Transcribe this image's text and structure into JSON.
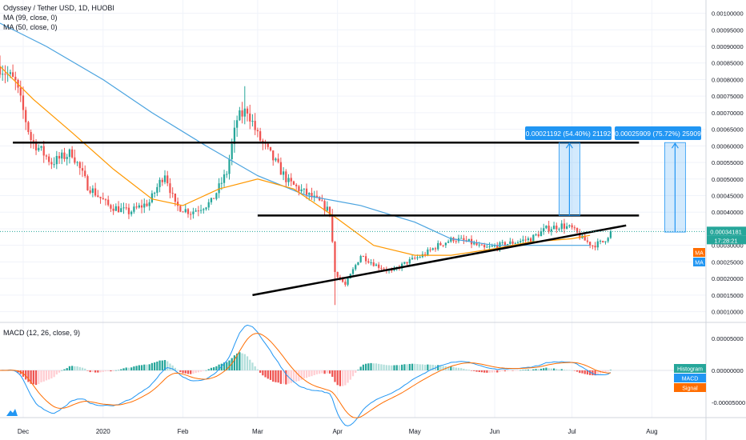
{
  "header": {
    "symbol_line": "Odyssey / Tether USD, 1D, HUOBI",
    "ma99_line": "MA (99, close, 0)",
    "ma50_line": "MA (50, close, 0)"
  },
  "macd_panel": {
    "title": "MACD (12, 26, close, 9)",
    "badges": [
      {
        "label": "Histogram",
        "color": "#26a69a"
      },
      {
        "label": "MACD",
        "color": "#2196f3"
      },
      {
        "label": "Signal",
        "color": "#ff6d00"
      }
    ],
    "axis_ticks": [
      "0.00005000",
      "0.00000000",
      "-0.00005000"
    ]
  },
  "price_axis": {
    "ticks": [
      "0.00100000",
      "0.00095000",
      "0.00090000",
      "0.00085000",
      "0.00080000",
      "0.00075000",
      "0.00070000",
      "0.00065000",
      "0.00060000",
      "0.00055000",
      "0.00050000",
      "0.00045000",
      "0.00040000",
      "0.00035000",
      "0.00030000",
      "0.00025000",
      "0.00020000",
      "0.00015000",
      "0.00010000"
    ],
    "last_price_label": "0.00034181",
    "countdown_label": "17:28:21",
    "ma_badges": [
      {
        "label": "MA",
        "color": "#ff6d00"
      },
      {
        "label": "MA",
        "color": "#2196f3"
      }
    ]
  },
  "time_axis": {
    "labels": [
      "Dec",
      "2020",
      "Feb",
      "Mar",
      "Apr",
      "May",
      "Jun",
      "Jul",
      "Aug"
    ]
  },
  "annotations": {
    "measure_1": "0.00021192 (54.40%) 21192",
    "measure_2": "0.00025909 (75.72%) 25909"
  },
  "colors": {
    "up": "#26a69a",
    "down": "#ef5350",
    "ma50": "#ff9800",
    "ma99": "#4aa3df",
    "macd": "#2196f3",
    "signal": "#ff6d00",
    "measure": "#2196f3"
  },
  "chart_data": {
    "type": "candlestick",
    "x_range": [
      "2019-11-22",
      "2020-08-22"
    ],
    "y_range": [
      7e-05,
      0.00104
    ],
    "last_price": 0.00034181,
    "resistance_upper": 0.00061,
    "resistance_lower": 0.00039,
    "support_line": [
      [
        "2020-02-28",
        0.00015
      ],
      [
        "2020-07-22",
        0.00036
      ]
    ],
    "ma50_points": [
      [
        "2019-11-22",
        0.00084
      ],
      [
        "2019-12-05",
        0.00074
      ],
      [
        "2019-12-20",
        0.00064
      ],
      [
        "2020-01-05",
        0.00053
      ],
      [
        "2020-01-20",
        0.00044
      ],
      [
        "2020-02-01",
        0.00042
      ],
      [
        "2020-02-15",
        0.00047
      ],
      [
        "2020-03-01",
        0.0005
      ],
      [
        "2020-03-15",
        0.00047
      ],
      [
        "2020-04-01",
        0.00038
      ],
      [
        "2020-04-15",
        0.0003
      ],
      [
        "2020-05-01",
        0.00027
      ],
      [
        "2020-05-15",
        0.00027
      ],
      [
        "2020-06-01",
        0.00029
      ],
      [
        "2020-06-15",
        0.00031
      ],
      [
        "2020-07-01",
        0.00032
      ],
      [
        "2020-07-08",
        0.00033
      ]
    ],
    "ma99_points": [
      [
        "2019-11-22",
        0.00097
      ],
      [
        "2019-12-10",
        0.0009
      ],
      [
        "2020-01-01",
        0.0008
      ],
      [
        "2020-01-20",
        0.0007
      ],
      [
        "2020-02-10",
        0.0006
      ],
      [
        "2020-03-01",
        0.00051
      ],
      [
        "2020-03-20",
        0.00045
      ],
      [
        "2020-04-10",
        0.00042
      ],
      [
        "2020-05-01",
        0.00037
      ],
      [
        "2020-05-15",
        0.00032
      ],
      [
        "2020-06-01",
        0.0003
      ],
      [
        "2020-06-20",
        0.0003
      ],
      [
        "2020-07-08",
        0.0003
      ]
    ],
    "measures": [
      {
        "date": "2020-06-30",
        "from": 0.00039,
        "to": 0.00061
      },
      {
        "date": "2020-08-10",
        "from": 0.00034,
        "to": 0.00061
      }
    ]
  }
}
